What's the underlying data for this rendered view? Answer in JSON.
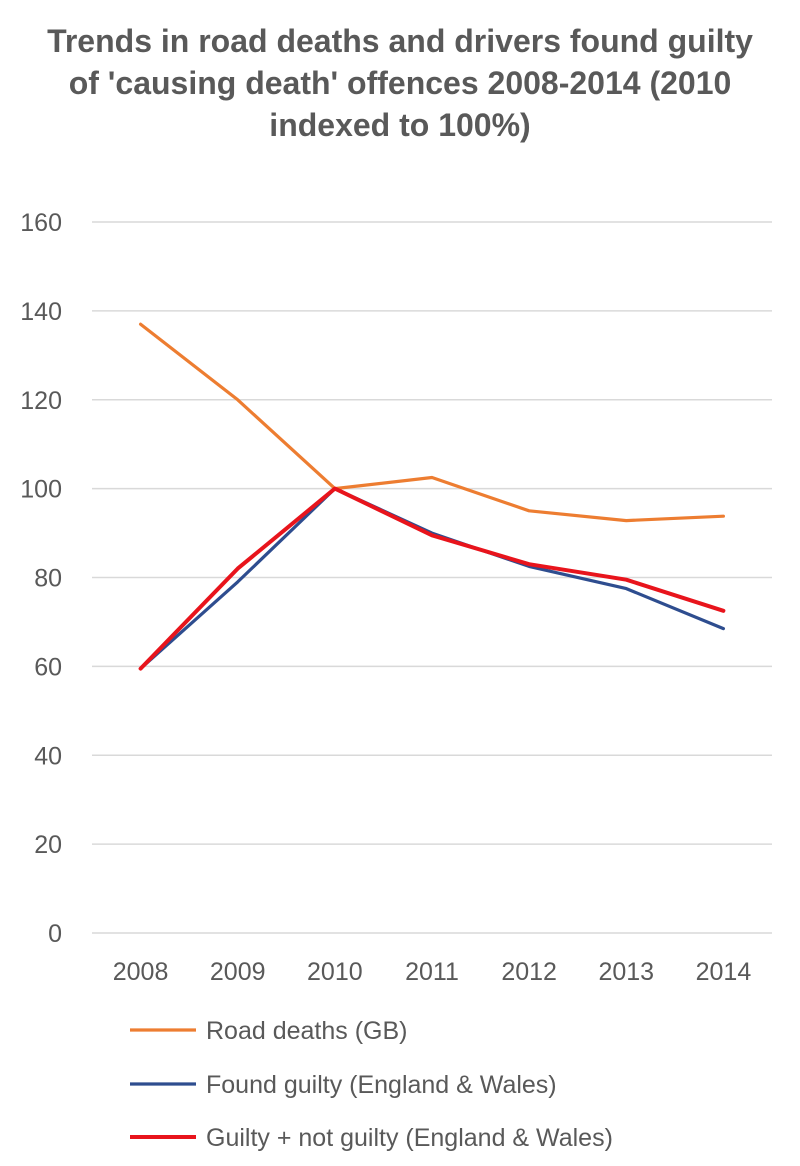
{
  "chart_data": {
    "type": "line",
    "title": "Trends in road deaths and drivers found guilty of 'causing death' offences 2008-2014 (2010 indexed to 100%)",
    "categories": [
      "2008",
      "2009",
      "2010",
      "2011",
      "2012",
      "2013",
      "2014"
    ],
    "ylim": [
      0,
      160
    ],
    "yticks": [
      0,
      20,
      40,
      60,
      80,
      100,
      120,
      140,
      160
    ],
    "grid": true,
    "legend_position": "bottom",
    "series": [
      {
        "name": "Road deaths (GB)",
        "color": "#ED7D31",
        "values": [
          137,
          120,
          100,
          102.5,
          95,
          92.8,
          93.8
        ]
      },
      {
        "name": "Found guilty (England & Wales)",
        "color": "#2E4D8F",
        "values": [
          59.5,
          79,
          100,
          90,
          82.5,
          77.5,
          68.5
        ]
      },
      {
        "name": "Guilty + not guilty (England & Wales)",
        "color": "#E8141C",
        "values": [
          59.5,
          82,
          100,
          89.5,
          83,
          79.5,
          72.5
        ]
      }
    ]
  }
}
